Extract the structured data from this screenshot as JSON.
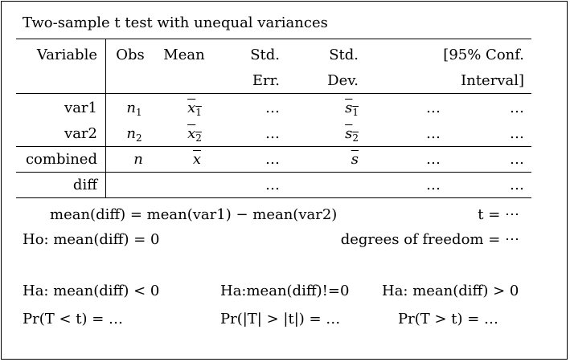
{
  "title": "Two-sample t test with unequal variances",
  "header": {
    "variable": "Variable",
    "obs": "Obs",
    "mean": "Mean",
    "std_err_1": "Std.",
    "std_err_2": "Err.",
    "std_dev_1": "Std.",
    "std_dev_2": "Dev.",
    "ci_1": "[95% Conf.",
    "ci_2": "Interval]"
  },
  "rows": [
    {
      "label": "var1",
      "obs": "n",
      "obs_sub": "1",
      "mean": "x",
      "mean_sub": "1",
      "se": "…",
      "sd": "s",
      "sd_sub": "1",
      "lo": "…",
      "hi": "…"
    },
    {
      "label": "var2",
      "obs": "n",
      "obs_sub": "2",
      "mean": "x",
      "mean_sub": "2",
      "se": "…",
      "sd": "s",
      "sd_sub": "2",
      "lo": "…",
      "hi": "…"
    },
    {
      "label": "combined",
      "obs": "n",
      "mean": "x",
      "se": "…",
      "sd": "s",
      "lo": "…",
      "hi": "…"
    },
    {
      "label": "diff",
      "se": "…",
      "lo": "…",
      "hi": "…"
    }
  ],
  "stats": {
    "diff_def": "mean(diff) = mean(var1) − mean(var2)",
    "t": "t = ⋯",
    "ho": "Ho: mean(diff) = 0",
    "df": "degrees of freedom = ⋯"
  },
  "alternatives": [
    {
      "ha": "Ha: mean(diff) < 0",
      "pr": "Pr(T < t) = …"
    },
    {
      "ha": "Ha:mean(diff)!=0",
      "pr": "Pr(|T| > |t|) = …"
    },
    {
      "ha": "Ha: mean(diff) > 0",
      "pr": "Pr(T > t) = …"
    }
  ]
}
